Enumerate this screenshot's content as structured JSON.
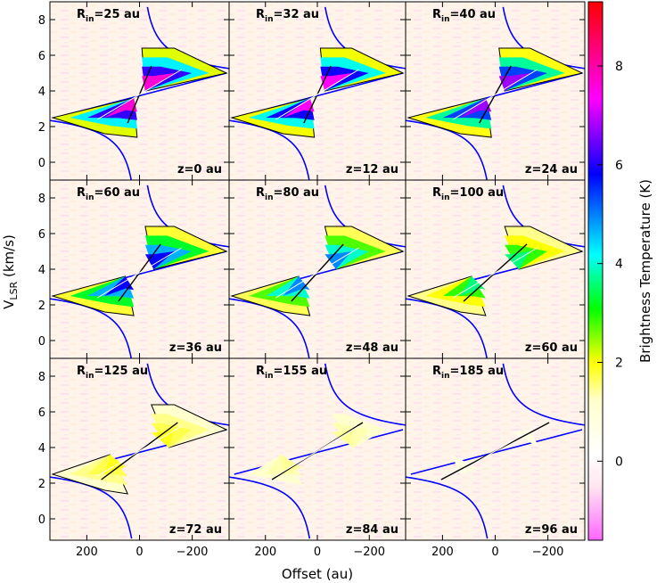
{
  "chart_data": {
    "type": "heatmap",
    "layout": "3x3 grid of position-velocity diagrams",
    "xlabel": "Offset (au)",
    "ylabel": "V_LSR (km/s)",
    "colorbar_label": "Brightness Temperature (K)",
    "xlim": [
      340,
      -340
    ],
    "ylim": [
      -1,
      9
    ],
    "x_ticks": [
      200,
      0,
      -200
    ],
    "y_ticks": [
      0,
      2,
      4,
      6,
      8
    ],
    "colorbar_range": [
      -1.6,
      9.3
    ],
    "colorbar_ticks": [
      0,
      2,
      4,
      6,
      8
    ],
    "colormap": [
      "#ff66ff",
      "#ffffff",
      "#ffff00",
      "#00ff00",
      "#00ffff",
      "#0000ff",
      "#ff00ff",
      "#ff0000"
    ],
    "systemic_velocity": 3.8,
    "envelope_curve_color": "#0000ff",
    "panels": [
      {
        "rin": "25",
        "z": "z=0 au",
        "peak": 8.5
      },
      {
        "rin": "32",
        "z": "z=12 au",
        "peak": 8.2
      },
      {
        "rin": "40",
        "z": "z=24 au",
        "peak": 7.5
      },
      {
        "rin": "60",
        "z": "z=36 au",
        "peak": 6.5
      },
      {
        "rin": "80",
        "z": "z=48 au",
        "peak": 5.5
      },
      {
        "rin": "100",
        "z": "z=60 au",
        "peak": 4.0
      },
      {
        "rin": "125",
        "z": "z=72 au",
        "peak": 2.0
      },
      {
        "rin": "155",
        "z": "z=84 au",
        "peak": 1.0
      },
      {
        "rin": "185",
        "z": "z=96 au",
        "peak": 0.4
      }
    ]
  }
}
